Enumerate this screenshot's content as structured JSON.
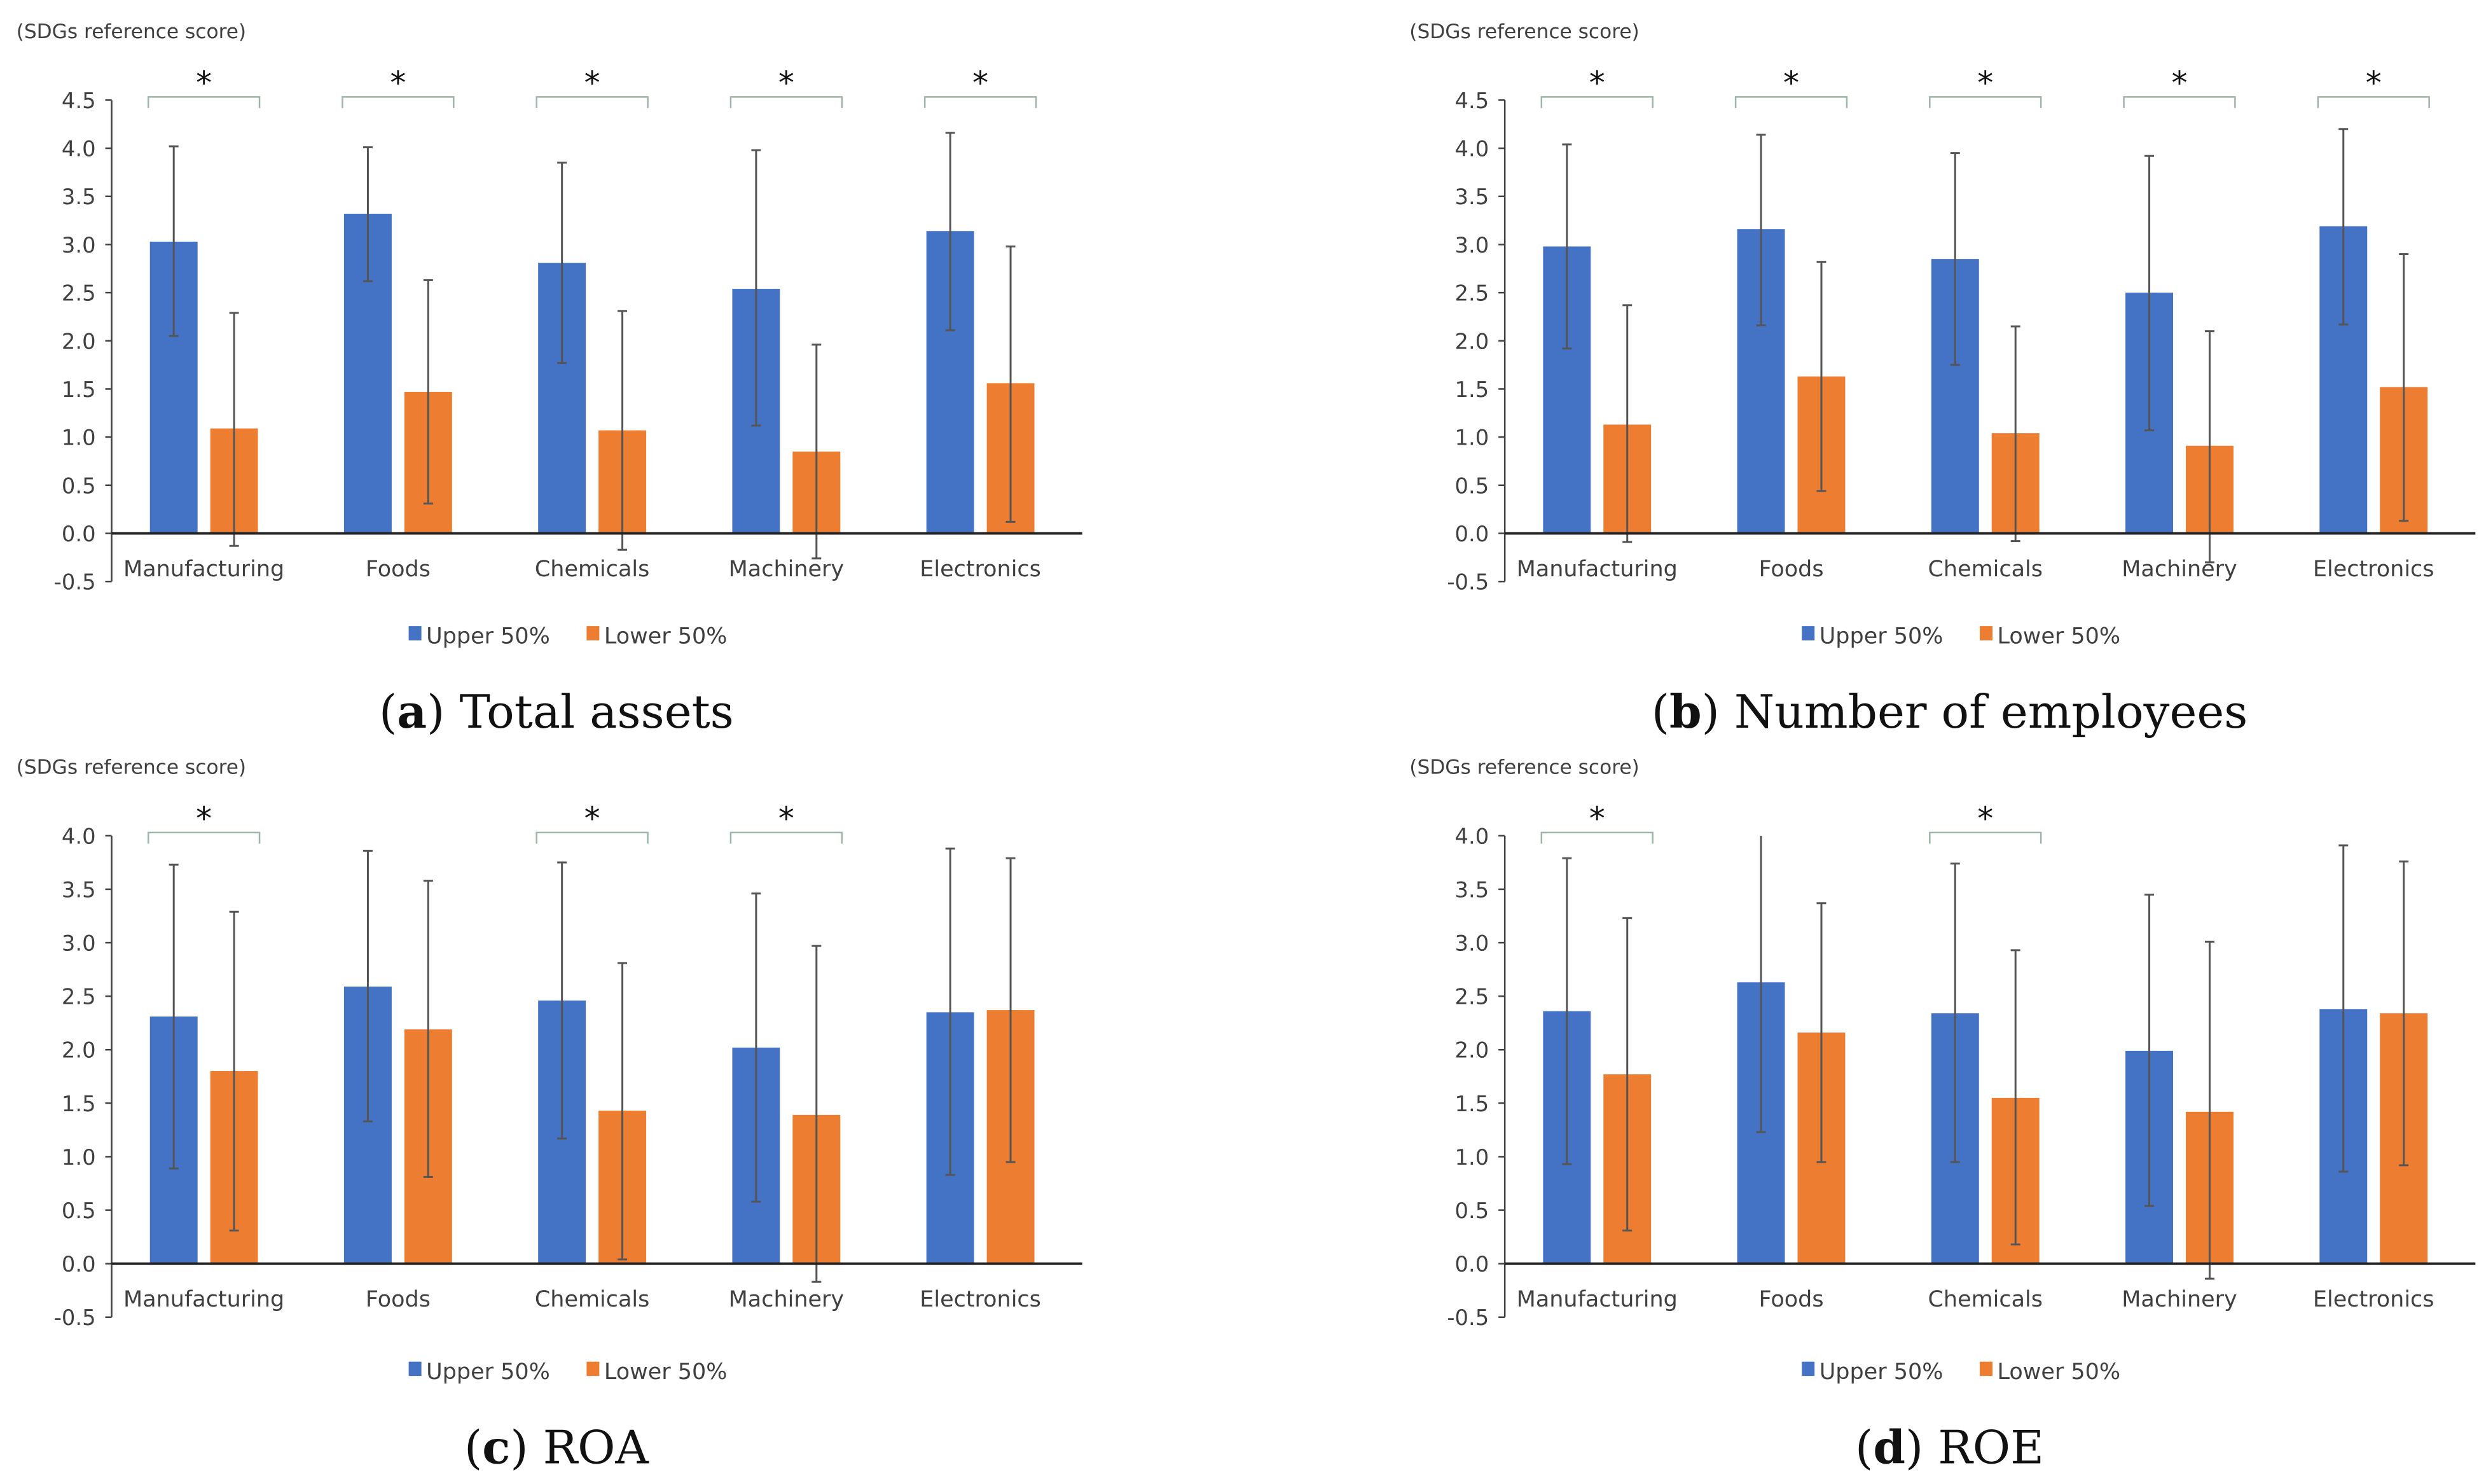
{
  "chart_data": [
    {
      "type": "bar",
      "panel_label": "a",
      "title": "Total assets",
      "ylabel": "(SDGs reference score)",
      "xlabel": "",
      "ylim": [
        -0.5,
        4.5
      ],
      "yticks": [
        "4.5",
        "4.0",
        "3.5",
        "3.0",
        "2.5",
        "2.0",
        "1.5",
        "1.0",
        "0.5",
        "0.0",
        "-0.5"
      ],
      "categories": [
        "Manufacturing",
        "Foods",
        "Chemicals",
        "Machinery",
        "Electronics"
      ],
      "significance": [
        "*",
        "*",
        "*",
        "*",
        "*"
      ],
      "legend_position": "bottom",
      "series": [
        {
          "name": "Upper 50%",
          "color": "#4472C4",
          "values": [
            3.03,
            3.32,
            2.81,
            2.54,
            3.14
          ],
          "err_low": [
            2.05,
            2.62,
            1.77,
            1.12,
            2.11
          ],
          "err_high": [
            4.02,
            4.01,
            3.85,
            3.98,
            4.16
          ]
        },
        {
          "name": "Lower 50%",
          "color": "#ED7D31",
          "values": [
            1.09,
            1.47,
            1.07,
            0.85,
            1.56
          ],
          "err_low": [
            -0.13,
            0.31,
            -0.17,
            -0.26,
            0.12
          ],
          "err_high": [
            2.29,
            2.63,
            2.31,
            1.96,
            2.98
          ]
        }
      ]
    },
    {
      "type": "bar",
      "panel_label": "b",
      "title": "Number of employees",
      "ylabel": "(SDGs reference score)",
      "xlabel": "",
      "ylim": [
        -0.5,
        4.5
      ],
      "yticks": [
        "4.5",
        "4.0",
        "3.5",
        "3.0",
        "2.5",
        "2.0",
        "1.5",
        "1.0",
        "0.5",
        "0.0",
        "-0.5"
      ],
      "categories": [
        "Manufacturing",
        "Foods",
        "Chemicals",
        "Machinery",
        "Electronics"
      ],
      "significance": [
        "*",
        "*",
        "*",
        "*",
        "*"
      ],
      "legend_position": "bottom",
      "series": [
        {
          "name": "Upper 50%",
          "color": "#4472C4",
          "values": [
            2.98,
            3.16,
            2.85,
            2.5,
            3.19
          ],
          "err_low": [
            1.92,
            2.16,
            1.75,
            1.07,
            2.17
          ],
          "err_high": [
            4.04,
            4.14,
            3.95,
            3.92,
            4.2
          ]
        },
        {
          "name": "Lower 50%",
          "color": "#ED7D31",
          "values": [
            1.13,
            1.63,
            1.04,
            0.91,
            1.52
          ],
          "err_low": [
            -0.09,
            0.44,
            -0.08,
            -0.3,
            0.13
          ],
          "err_high": [
            2.37,
            2.82,
            2.15,
            2.1,
            2.9
          ]
        }
      ]
    },
    {
      "type": "bar",
      "panel_label": "c",
      "title": "ROA",
      "ylabel": "(SDGs reference score)",
      "xlabel": "",
      "ylim": [
        -0.5,
        4.0
      ],
      "yticks": [
        "4.0",
        "3.5",
        "3.0",
        "2.5",
        "2.0",
        "1.5",
        "1.0",
        "0.5",
        "0.0",
        "-0.5"
      ],
      "categories": [
        "Manufacturing",
        "Foods",
        "Chemicals",
        "Machinery",
        "Electronics"
      ],
      "significance": [
        "*",
        "",
        "*",
        "*",
        ""
      ],
      "legend_position": "bottom",
      "series": [
        {
          "name": "Upper 50%",
          "color": "#4472C4",
          "values": [
            2.31,
            2.59,
            2.46,
            2.02,
            2.35
          ],
          "err_low": [
            0.89,
            1.33,
            1.17,
            0.58,
            0.83
          ],
          "err_high": [
            3.73,
            3.86,
            3.75,
            3.46,
            3.88
          ]
        },
        {
          "name": "Lower 50%",
          "color": "#ED7D31",
          "values": [
            1.8,
            2.19,
            1.43,
            1.39,
            2.37
          ],
          "err_low": [
            0.31,
            0.81,
            0.04,
            -0.17,
            0.95
          ],
          "err_high": [
            3.29,
            3.58,
            2.81,
            2.97,
            3.79
          ]
        }
      ]
    },
    {
      "type": "bar",
      "panel_label": "d",
      "title": "ROE",
      "ylabel": "(SDGs reference score)",
      "xlabel": "",
      "ylim": [
        -0.5,
        4.0
      ],
      "yticks": [
        "4.0",
        "3.5",
        "3.0",
        "2.5",
        "2.0",
        "1.5",
        "1.0",
        "0.5",
        "0.0",
        "-0.5"
      ],
      "categories": [
        "Manufacturing",
        "Foods",
        "Chemicals",
        "Machinery",
        "Electronics"
      ],
      "significance": [
        "*",
        "",
        "*",
        "",
        ""
      ],
      "legend_position": "bottom",
      "series": [
        {
          "name": "Upper 50%",
          "color": "#4472C4",
          "values": [
            2.36,
            2.63,
            2.34,
            1.99,
            2.38
          ],
          "err_low": [
            0.93,
            1.23,
            0.95,
            0.54,
            0.86
          ],
          "err_high": [
            3.79,
            4.0,
            3.74,
            3.45,
            3.91
          ]
        },
        {
          "name": "Lower 50%",
          "color": "#ED7D31",
          "values": [
            1.77,
            2.16,
            1.55,
            1.42,
            2.34
          ],
          "err_low": [
            0.31,
            0.95,
            0.18,
            -0.14,
            0.92
          ],
          "err_high": [
            3.23,
            3.37,
            2.93,
            3.01,
            3.76
          ]
        }
      ]
    }
  ]
}
